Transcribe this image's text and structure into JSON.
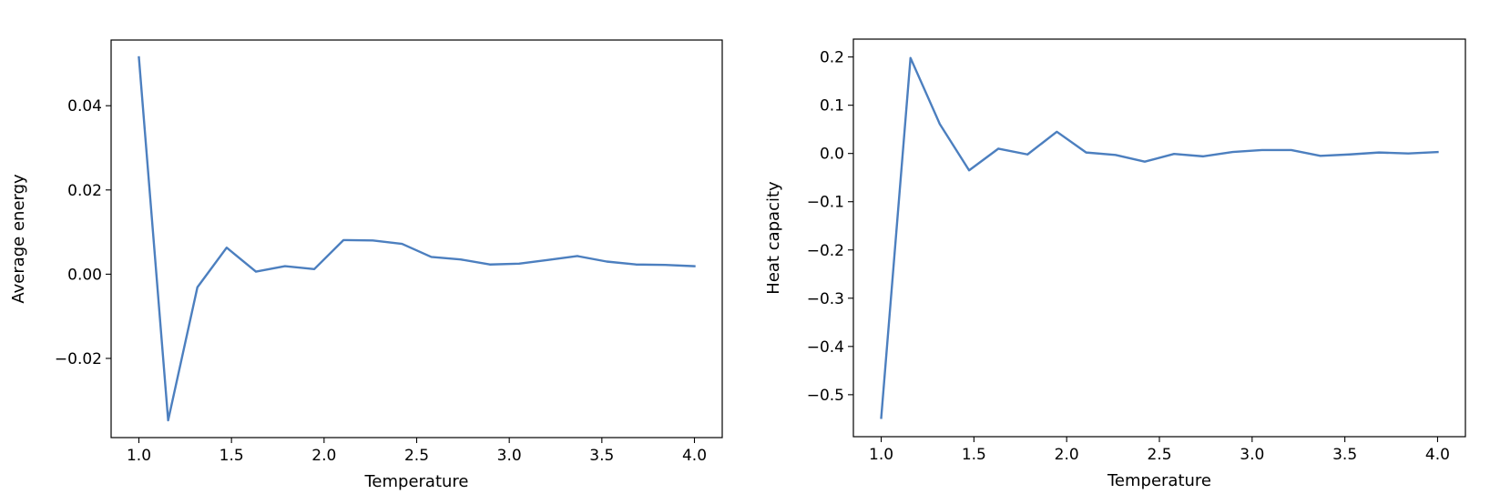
{
  "chart_data": [
    {
      "type": "line",
      "title": "",
      "xlabel": "Temperature",
      "ylabel": "Average energy",
      "xlim": [
        0.85,
        4.15
      ],
      "ylim": [
        -0.0388,
        0.0556
      ],
      "xticks": [
        1.0,
        1.5,
        2.0,
        2.5,
        3.0,
        3.5,
        4.0
      ],
      "xtick_labels": [
        "1.0",
        "1.5",
        "2.0",
        "2.5",
        "3.0",
        "3.5",
        "4.0"
      ],
      "yticks": [
        -0.02,
        0.0,
        0.02,
        0.04
      ],
      "ytick_labels": [
        "−0.02",
        "0.00",
        "0.02",
        "0.04"
      ],
      "grid": false,
      "series": [
        {
          "color": "#4c7fbf",
          "x": [
            1.0,
            1.158,
            1.316,
            1.474,
            1.632,
            1.789,
            1.947,
            2.105,
            2.263,
            2.421,
            2.579,
            2.737,
            2.895,
            3.053,
            3.211,
            3.368,
            3.526,
            3.684,
            3.842,
            4.0
          ],
          "y": [
            0.0515,
            -0.0347,
            -0.0031,
            0.0063,
            0.0006,
            0.0019,
            0.0012,
            0.0081,
            0.008,
            0.0072,
            0.0041,
            0.0035,
            0.0023,
            0.0025,
            0.0034,
            0.0043,
            0.003,
            0.0023,
            0.0022,
            0.0019
          ]
        }
      ]
    },
    {
      "type": "line",
      "title": "",
      "xlabel": "Temperature",
      "ylabel": "Heat capacity",
      "xlim": [
        0.85,
        4.15
      ],
      "ylim": [
        -0.587,
        0.237
      ],
      "xticks": [
        1.0,
        1.5,
        2.0,
        2.5,
        3.0,
        3.5,
        4.0
      ],
      "xtick_labels": [
        "1.0",
        "1.5",
        "2.0",
        "2.5",
        "3.0",
        "3.5",
        "4.0"
      ],
      "yticks": [
        -0.5,
        -0.4,
        -0.3,
        -0.2,
        -0.1,
        0.0,
        0.1,
        0.2
      ],
      "ytick_labels": [
        "−0.5",
        "−0.4",
        "−0.3",
        "−0.2",
        "−0.1",
        "0.0",
        "0.1",
        "0.2"
      ],
      "grid": false,
      "series": [
        {
          "color": "#4c7fbf",
          "x": [
            1.0,
            1.158,
            1.316,
            1.474,
            1.632,
            1.789,
            1.947,
            2.105,
            2.263,
            2.421,
            2.579,
            2.737,
            2.895,
            3.053,
            3.211,
            3.368,
            3.526,
            3.684,
            3.842,
            4.0
          ],
          "y": [
            -0.548,
            0.198,
            0.061,
            -0.035,
            0.01,
            -0.002,
            0.045,
            0.002,
            -0.003,
            -0.017,
            -0.001,
            -0.006,
            0.003,
            0.007,
            0.007,
            -0.005,
            -0.002,
            0.002,
            0.0,
            0.003
          ]
        }
      ]
    }
  ]
}
